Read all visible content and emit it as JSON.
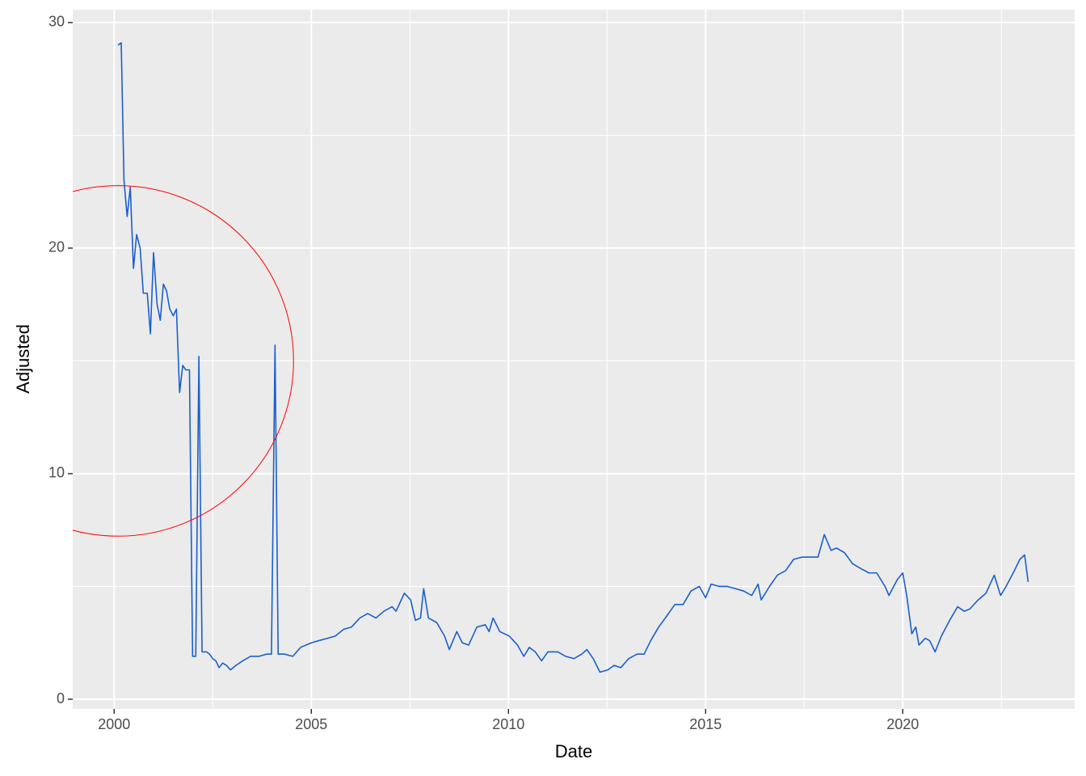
{
  "chart_data": {
    "type": "line",
    "x_label": "Date",
    "y_label": "Adjusted",
    "xlim": [
      1998.95,
      2024.36
    ],
    "ylim": [
      -0.43,
      30.57
    ],
    "xticks": [
      2000,
      2005,
      2010,
      2015,
      2020
    ],
    "x_minor_ticks": [
      2002.5,
      2007.5,
      2012.5,
      2017.5,
      2022.5
    ],
    "yticks": [
      0,
      10,
      20,
      30
    ],
    "y_minor_ticks": [
      5,
      15,
      25
    ],
    "grid": true,
    "panel_color": "#ebebeb",
    "highlight_circle": {
      "x": 2000.1,
      "y": 15.0,
      "rx": 4.45,
      "ry": 7.77,
      "color": "#ff0000"
    },
    "series": [
      {
        "name": "Adjusted",
        "color": "#1a5fcc",
        "x": [
          2000.1,
          2000.18,
          2000.25,
          2000.33,
          2000.41,
          2000.49,
          2000.57,
          2000.66,
          2000.74,
          2000.84,
          2000.92,
          2001.0,
          2001.09,
          2001.17,
          2001.25,
          2001.33,
          2001.41,
          2001.5,
          2001.58,
          2001.66,
          2001.74,
          2001.82,
          2001.91,
          2001.99,
          2002.07,
          2002.15,
          2002.23,
          2002.34,
          2002.42,
          2002.5,
          2002.58,
          2002.66,
          2002.75,
          2002.85,
          2002.95,
          2003.09,
          2003.26,
          2003.46,
          2003.67,
          2003.87,
          2003.99,
          2004.08,
          2004.16,
          2004.32,
          2004.53,
          2004.73,
          2005.0,
          2005.2,
          2005.41,
          2005.61,
          2005.82,
          2006.02,
          2006.23,
          2006.43,
          2006.64,
          2006.84,
          2007.05,
          2007.15,
          2007.36,
          2007.52,
          2007.64,
          2007.77,
          2007.85,
          2007.97,
          2008.18,
          2008.38,
          2008.5,
          2008.69,
          2008.83,
          2008.99,
          2009.2,
          2009.41,
          2009.51,
          2009.61,
          2009.78,
          2010.02,
          2010.23,
          2010.39,
          2010.53,
          2010.68,
          2010.84,
          2011.0,
          2011.25,
          2011.45,
          2011.66,
          2011.86,
          2011.99,
          2012.15,
          2012.32,
          2012.52,
          2012.68,
          2012.85,
          2013.05,
          2013.26,
          2013.44,
          2013.61,
          2013.81,
          2014.02,
          2014.22,
          2014.43,
          2014.63,
          2014.84,
          2015.0,
          2015.14,
          2015.35,
          2015.55,
          2015.76,
          2015.96,
          2016.17,
          2016.33,
          2016.41,
          2016.62,
          2016.82,
          2017.03,
          2017.23,
          2017.44,
          2017.64,
          2017.85,
          2018.01,
          2018.18,
          2018.32,
          2018.52,
          2018.73,
          2018.93,
          2019.14,
          2019.34,
          2019.55,
          2019.65,
          2019.86,
          2020.0,
          2020.1,
          2020.23,
          2020.33,
          2020.41,
          2020.57,
          2020.68,
          2020.82,
          2020.98,
          2021.19,
          2021.39,
          2021.56,
          2021.7,
          2021.91,
          2022.11,
          2022.32,
          2022.48,
          2022.62,
          2022.83,
          2022.97,
          2023.09,
          2023.18
        ],
        "values": [
          29.0,
          29.1,
          23.0,
          21.4,
          22.7,
          19.1,
          20.6,
          20.0,
          18.0,
          18.0,
          16.2,
          19.8,
          17.5,
          16.8,
          18.4,
          18.1,
          17.3,
          17.0,
          17.3,
          13.6,
          14.8,
          14.6,
          14.6,
          1.9,
          1.9,
          15.2,
          2.1,
          2.1,
          2.0,
          1.8,
          1.7,
          1.4,
          1.6,
          1.5,
          1.3,
          1.5,
          1.7,
          1.9,
          1.9,
          2.0,
          2.0,
          15.7,
          2.0,
          2.0,
          1.9,
          2.3,
          2.5,
          2.6,
          2.7,
          2.8,
          3.1,
          3.2,
          3.6,
          3.8,
          3.6,
          3.9,
          4.1,
          3.9,
          4.7,
          4.4,
          3.5,
          3.6,
          4.9,
          3.6,
          3.4,
          2.8,
          2.2,
          3.0,
          2.5,
          2.4,
          3.2,
          3.3,
          3.0,
          3.6,
          3.0,
          2.8,
          2.4,
          1.9,
          2.3,
          2.1,
          1.7,
          2.1,
          2.1,
          1.9,
          1.8,
          2.0,
          2.2,
          1.8,
          1.2,
          1.3,
          1.5,
          1.4,
          1.8,
          2.0,
          2.0,
          2.6,
          3.2,
          3.7,
          4.2,
          4.2,
          4.8,
          5.0,
          4.5,
          5.1,
          5.0,
          5.0,
          4.9,
          4.8,
          4.6,
          5.1,
          4.4,
          5.0,
          5.5,
          5.7,
          6.2,
          6.3,
          6.3,
          6.3,
          7.3,
          6.6,
          6.7,
          6.5,
          6.0,
          5.8,
          5.6,
          5.6,
          5.0,
          4.6,
          5.3,
          5.6,
          4.6,
          2.9,
          3.2,
          2.4,
          2.7,
          2.6,
          2.1,
          2.8,
          3.5,
          4.1,
          3.9,
          4.0,
          4.4,
          4.7,
          5.5,
          4.6,
          5.0,
          5.7,
          6.2,
          6.4,
          5.2
        ]
      }
    ]
  }
}
